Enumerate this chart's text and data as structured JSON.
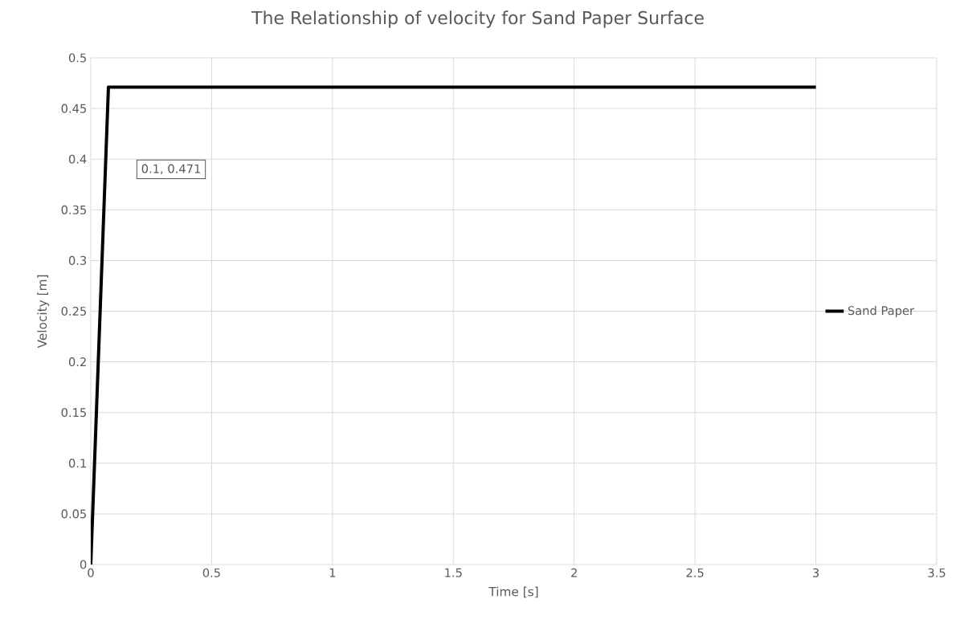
{
  "chart_data": {
    "type": "line",
    "title": "The Relationship of velocity for Sand Paper Surface",
    "xlabel": "Time [s]",
    "ylabel": "Velocity [m]",
    "x": [
      0,
      0.073,
      3
    ],
    "series": [
      {
        "name": "Sand Paper",
        "color": "#000000",
        "values": [
          0,
          0.471,
          0.471
        ]
      }
    ],
    "xlim": [
      0,
      3.5
    ],
    "ylim": [
      0,
      0.5
    ],
    "xticks": [
      0,
      0.5,
      1,
      1.5,
      2,
      2.5,
      3,
      3.5
    ],
    "yticks": [
      0,
      0.05,
      0.1,
      0.15,
      0.2,
      0.25,
      0.3,
      0.35,
      0.4,
      0.45,
      0.5
    ],
    "grid": true,
    "legend": "right",
    "annotations": [
      "0.1, 0.471"
    ]
  }
}
